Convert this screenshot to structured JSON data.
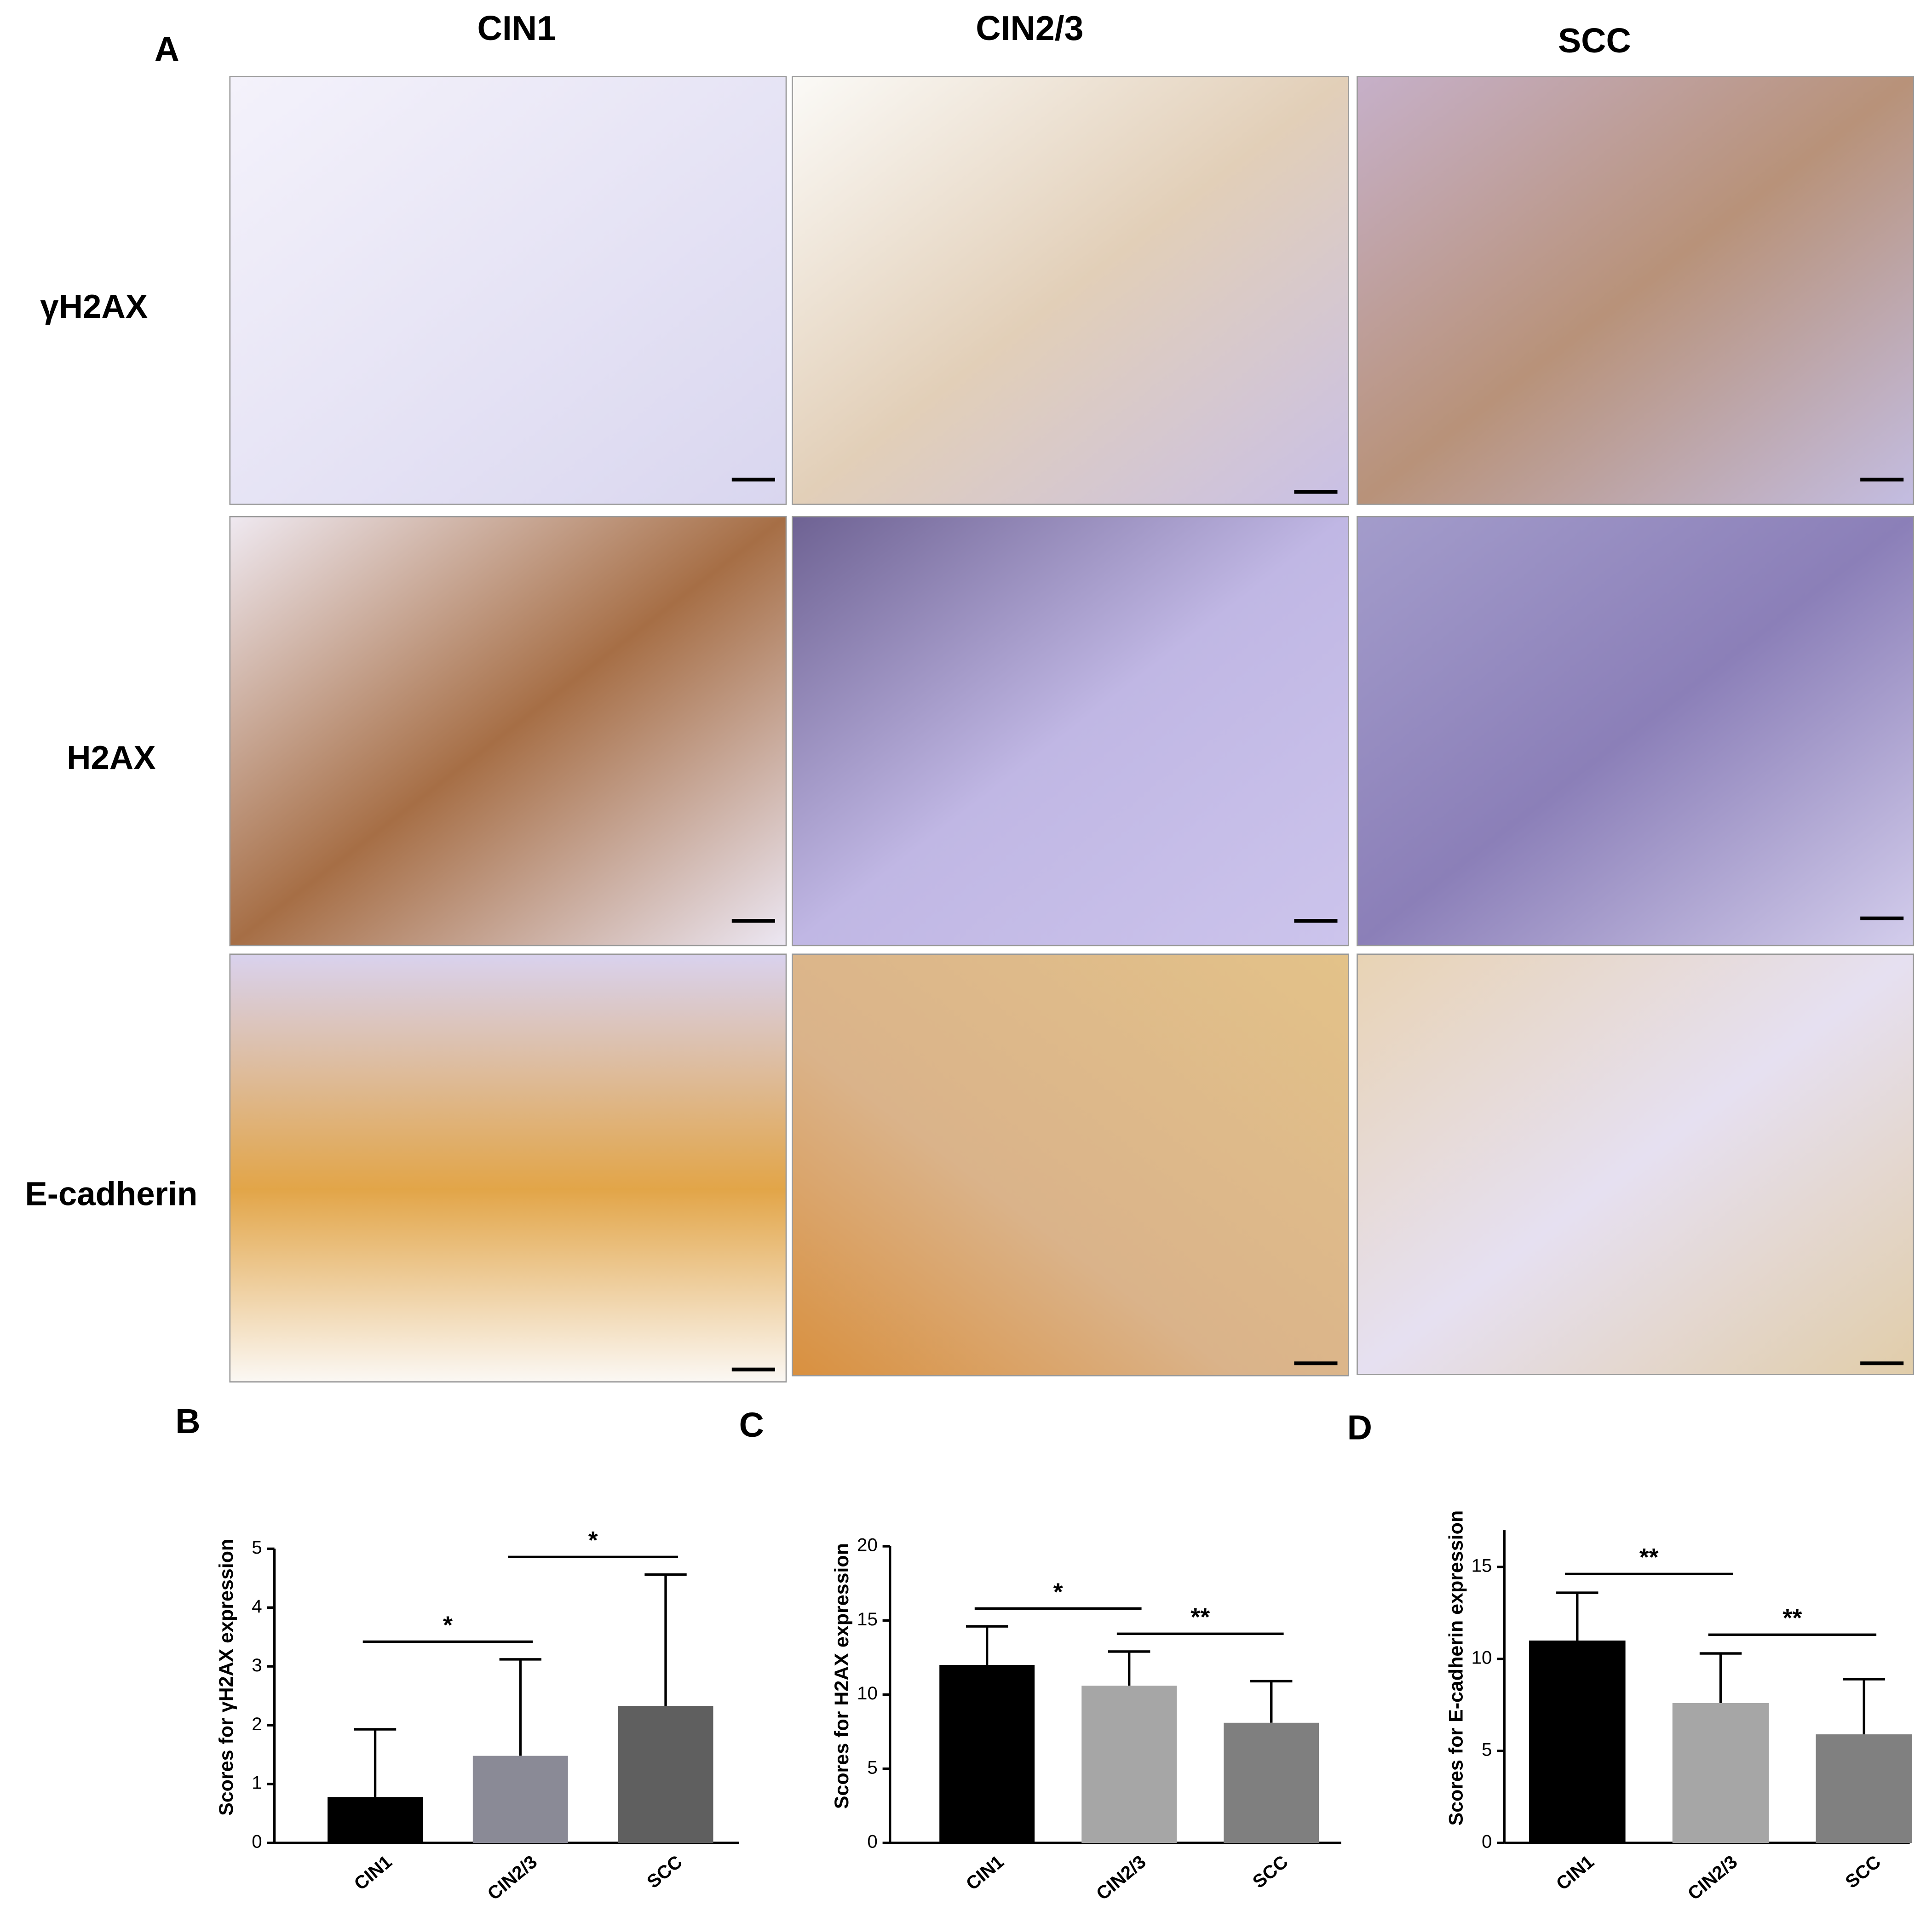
{
  "panel_labels": [
    "A",
    "B",
    "C",
    "D"
  ],
  "columns": [
    "CIN1",
    "CIN2/3",
    "SCC"
  ],
  "rows": [
    "γH2AX",
    "H2AX",
    "E-cadherin"
  ],
  "chart_data": [
    {
      "type": "bar",
      "ylabel": "Scores for γH2AX expression",
      "categories": [
        "CIN1",
        "CIN2/3",
        "SCC"
      ],
      "values": [
        0.78,
        1.48,
        2.33
      ],
      "errors": [
        1.15,
        1.64,
        2.23
      ],
      "colors": [
        "#000000",
        "#8a8a96",
        "#5f5f5f"
      ],
      "ylim": [
        0,
        5
      ],
      "yticks": [
        0,
        1,
        2,
        3,
        4,
        5
      ],
      "annotations": [
        {
          "text": "*",
          "between": [
            "CIN1",
            "CIN2/3"
          ]
        },
        {
          "text": "*",
          "between": [
            "CIN2/3",
            "SCC"
          ]
        }
      ]
    },
    {
      "type": "bar",
      "ylabel": "Scores for H2AX expression",
      "categories": [
        "CIN1",
        "CIN2/3",
        "SCC"
      ],
      "values": [
        12.0,
        10.6,
        8.1
      ],
      "errors": [
        2.6,
        2.3,
        2.8
      ],
      "colors": [
        "#000000",
        "#a6a6a6",
        "#7f7f7f"
      ],
      "ylim": [
        0,
        20
      ],
      "yticks": [
        0,
        5,
        10,
        15,
        20
      ],
      "annotations": [
        {
          "text": "*",
          "between": [
            "CIN1",
            "CIN2/3"
          ]
        },
        {
          "text": "**",
          "between": [
            "CIN2/3",
            "SCC"
          ]
        }
      ]
    },
    {
      "type": "bar",
      "ylabel": "Scores for E-cadherin expression",
      "categories": [
        "CIN1",
        "CIN2/3",
        "SCC"
      ],
      "values": [
        11.0,
        7.6,
        5.9
      ],
      "errors": [
        2.6,
        2.7,
        3.0
      ],
      "colors": [
        "#000000",
        "#a6a6a6",
        "#808080"
      ],
      "ylim": [
        0,
        17
      ],
      "yticks": [
        0,
        5,
        10,
        15
      ],
      "annotations": [
        {
          "text": "**",
          "between": [
            "CIN1",
            "CIN2/3"
          ]
        },
        {
          "text": "**",
          "between": [
            "CIN2/3",
            "SCC"
          ]
        }
      ]
    }
  ]
}
